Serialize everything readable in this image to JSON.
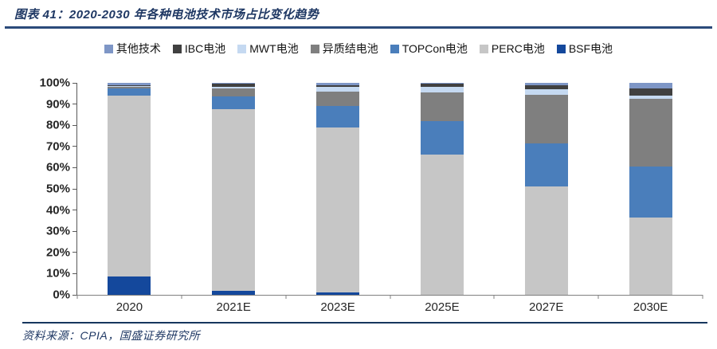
{
  "header": {
    "title": "图表 41：2020-2030 年各种电池技术市场占比变化趋势"
  },
  "footer": {
    "source": "资料来源：CPIA，国盛证券研究所"
  },
  "colors": {
    "title_text": "#1F3864",
    "title_rule": "#2B4A7A",
    "footer_rule": "#17375E",
    "axis": "#595959"
  },
  "chart_data": {
    "type": "bar",
    "stacked": true,
    "unit": "%",
    "title": "2020-2030 年各种电池技术市场占比变化趋势",
    "categories": [
      "2020",
      "2021E",
      "2023E",
      "2025E",
      "2027E",
      "2030E"
    ],
    "series": [
      {
        "name": "其他技术",
        "color": "#7E96C6",
        "values": [
          1.0,
          0.5,
          1.0,
          0.5,
          1.0,
          2.5
        ]
      },
      {
        "name": "IBC电池",
        "color": "#404040",
        "values": [
          0.5,
          1.5,
          1.0,
          1.5,
          2.0,
          3.5
        ]
      },
      {
        "name": "MWT电池",
        "color": "#C5D9F1",
        "values": [
          0.5,
          0.5,
          2.0,
          2.5,
          2.5,
          1.5
        ]
      },
      {
        "name": "异质结电池",
        "color": "#7F7F7F",
        "values": [
          0.5,
          4.0,
          7.0,
          13.5,
          23.0,
          32.0
        ]
      },
      {
        "name": "TOPCon电池",
        "color": "#4A7EBB",
        "values": [
          3.5,
          6.0,
          10.0,
          16.0,
          20.5,
          24.0
        ]
      },
      {
        "name": "PERC电池",
        "color": "#C6C6C6",
        "values": [
          85.5,
          85.5,
          78.0,
          66.0,
          51.0,
          36.5
        ]
      },
      {
        "name": "BSF电池",
        "color": "#14489C",
        "values": [
          8.5,
          2.0,
          1.0,
          0.0,
          0.0,
          0.0
        ]
      }
    ],
    "stack_bottom_to_top": [
      "BSF电池",
      "PERC电池",
      "TOPCon电池",
      "异质结电池",
      "MWT电池",
      "IBC电池",
      "其他技术"
    ],
    "ylim": [
      0,
      100
    ],
    "ytick_step": 10,
    "ytick_labels": [
      "0%",
      "10%",
      "20%",
      "30%",
      "40%",
      "50%",
      "60%",
      "70%",
      "80%",
      "90%",
      "100%"
    ],
    "legend_position": "top",
    "grid": false
  }
}
